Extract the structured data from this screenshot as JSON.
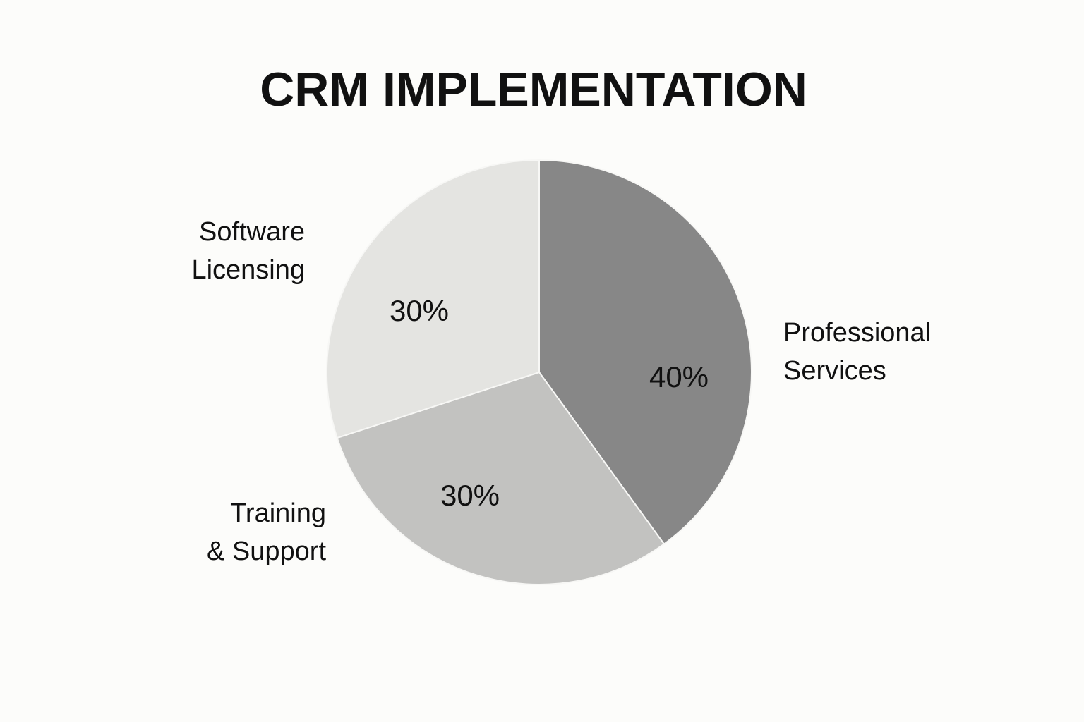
{
  "chart_data": {
    "type": "pie",
    "title": "CRM IMPLEMENTATION",
    "slices": [
      {
        "label_lines": [
          "Professional",
          "Services"
        ],
        "value": 40,
        "value_label": "40%",
        "color": "#878787"
      },
      {
        "label_lines": [
          "Training",
          "& Support"
        ],
        "value": 30,
        "value_label": "30%",
        "color": "#c2c2c0"
      },
      {
        "label_lines": [
          "Software",
          "Licensing"
        ],
        "value": 30,
        "value_label": "30%",
        "color": "#e4e4e1"
      }
    ],
    "start_angle": "top (12 o'clock), clockwise",
    "legend": "none",
    "slice_border_color": "#f7f7f5"
  }
}
